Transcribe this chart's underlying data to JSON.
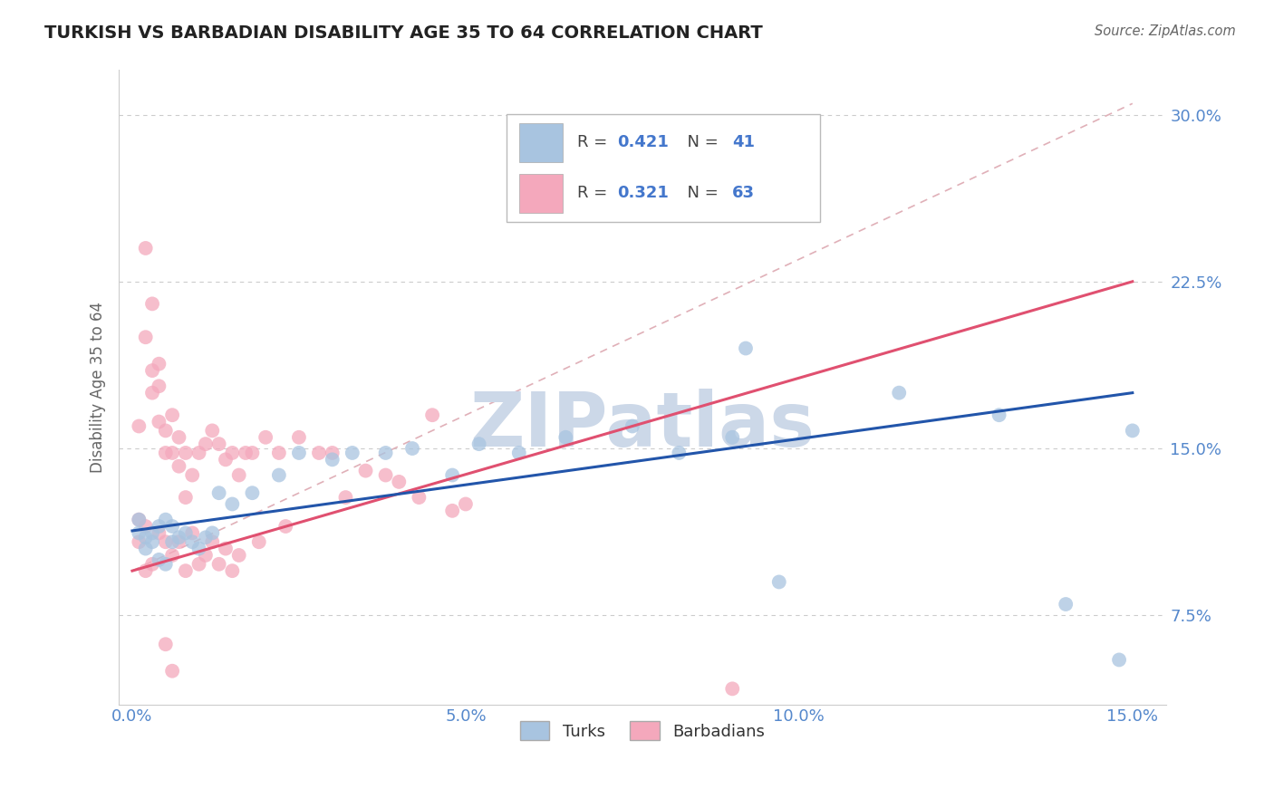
{
  "title": "TURKISH VS BARBADIAN DISABILITY AGE 35 TO 64 CORRELATION CHART",
  "source": "Source: ZipAtlas.com",
  "xlabel_label": "Turks",
  "xlabel2_label": "Barbadians",
  "ylabel": "Disability Age 35 to 64",
  "xlim": [
    -0.002,
    0.155
  ],
  "ylim": [
    0.035,
    0.32
  ],
  "xticks": [
    0.0,
    0.05,
    0.1,
    0.15
  ],
  "xtick_labels": [
    "0.0%",
    "5.0%",
    "10.0%",
    "15.0%"
  ],
  "yticks": [
    0.075,
    0.15,
    0.225,
    0.3
  ],
  "ytick_labels": [
    "7.5%",
    "15.0%",
    "22.5%",
    "30.0%"
  ],
  "turks_R": 0.421,
  "turks_N": 41,
  "barbadians_R": 0.321,
  "barbadians_N": 63,
  "turks_color": "#a8c4e0",
  "barbadians_color": "#f4a8bc",
  "turks_line_color": "#2255aa",
  "barbadians_line_color": "#e05070",
  "ref_line_color": "#e0b0b8",
  "grid_color": "#cccccc",
  "title_color": "#222222",
  "axis_label_color": "#5588cc",
  "legend_r_color": "#4477cc",
  "watermark_color": "#ccd8e8",
  "turks_line_x0": 0.0,
  "turks_line_y0": 0.113,
  "turks_line_x1": 0.15,
  "turks_line_y1": 0.175,
  "barb_line_x0": 0.0,
  "barb_line_y0": 0.095,
  "barb_line_x1": 0.15,
  "barb_line_y1": 0.225,
  "ref_line_x0": 0.0,
  "ref_line_y0": 0.095,
  "ref_line_x1": 0.15,
  "ref_line_y1": 0.305,
  "turks_x": [
    0.001,
    0.001,
    0.002,
    0.002,
    0.003,
    0.003,
    0.004,
    0.004,
    0.005,
    0.005,
    0.006,
    0.006,
    0.007,
    0.008,
    0.009,
    0.01,
    0.011,
    0.012,
    0.013,
    0.015,
    0.018,
    0.022,
    0.025,
    0.03,
    0.033,
    0.038,
    0.042,
    0.048,
    0.052,
    0.058,
    0.065,
    0.075,
    0.082,
    0.09,
    0.092,
    0.097,
    0.115,
    0.13,
    0.14,
    0.148,
    0.15
  ],
  "turks_y": [
    0.118,
    0.112,
    0.11,
    0.105,
    0.112,
    0.108,
    0.115,
    0.1,
    0.118,
    0.098,
    0.115,
    0.108,
    0.11,
    0.112,
    0.108,
    0.105,
    0.11,
    0.112,
    0.13,
    0.125,
    0.13,
    0.138,
    0.148,
    0.145,
    0.148,
    0.148,
    0.15,
    0.138,
    0.152,
    0.148,
    0.155,
    0.16,
    0.148,
    0.155,
    0.195,
    0.09,
    0.175,
    0.165,
    0.08,
    0.055,
    0.158
  ],
  "barb_x": [
    0.001,
    0.001,
    0.001,
    0.002,
    0.002,
    0.002,
    0.003,
    0.003,
    0.003,
    0.004,
    0.004,
    0.004,
    0.005,
    0.005,
    0.005,
    0.006,
    0.006,
    0.006,
    0.007,
    0.007,
    0.007,
    0.008,
    0.008,
    0.008,
    0.009,
    0.009,
    0.01,
    0.01,
    0.011,
    0.011,
    0.012,
    0.012,
    0.013,
    0.013,
    0.014,
    0.014,
    0.015,
    0.015,
    0.016,
    0.016,
    0.017,
    0.018,
    0.019,
    0.02,
    0.022,
    0.023,
    0.025,
    0.028,
    0.03,
    0.032,
    0.035,
    0.038,
    0.04,
    0.043,
    0.048,
    0.05,
    0.002,
    0.003,
    0.004,
    0.005,
    0.006,
    0.045,
    0.09
  ],
  "barb_y": [
    0.118,
    0.16,
    0.108,
    0.2,
    0.115,
    0.095,
    0.185,
    0.175,
    0.098,
    0.178,
    0.162,
    0.112,
    0.158,
    0.148,
    0.108,
    0.165,
    0.148,
    0.102,
    0.155,
    0.142,
    0.108,
    0.148,
    0.128,
    0.095,
    0.138,
    0.112,
    0.148,
    0.098,
    0.152,
    0.102,
    0.158,
    0.108,
    0.152,
    0.098,
    0.145,
    0.105,
    0.148,
    0.095,
    0.138,
    0.102,
    0.148,
    0.148,
    0.108,
    0.155,
    0.148,
    0.115,
    0.155,
    0.148,
    0.148,
    0.128,
    0.14,
    0.138,
    0.135,
    0.128,
    0.122,
    0.125,
    0.24,
    0.215,
    0.188,
    0.062,
    0.05,
    0.165,
    0.042
  ]
}
